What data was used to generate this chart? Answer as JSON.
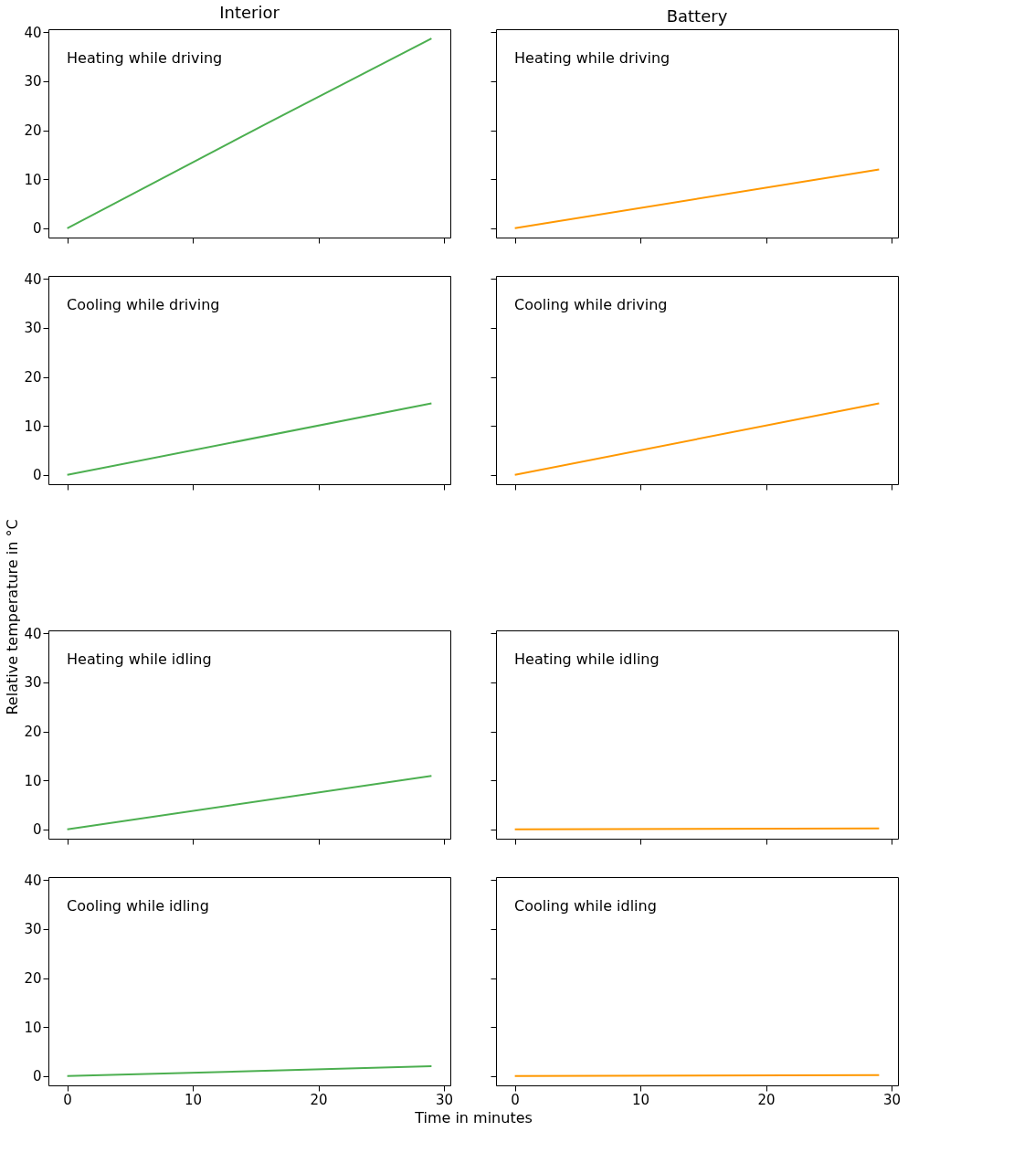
{
  "chart_data": [
    {
      "type": "line",
      "title": "Interior",
      "annotations": [
        "Heating while driving"
      ],
      "x": [
        0,
        16,
        29
      ],
      "series": [
        {
          "color": "#4caf50",
          "values": [
            0,
            21.5,
            38.7
          ]
        }
      ],
      "xlim": [
        -1.5,
        30.5
      ],
      "ylim": [
        -1.9,
        40.6
      ],
      "xticks": [
        0,
        10,
        20,
        30
      ],
      "yticks": [
        0,
        10,
        20,
        30,
        40
      ],
      "tick_labels": "y",
      "grid": false
    },
    {
      "type": "line",
      "title": "Battery",
      "annotations": [
        "Heating while driving"
      ],
      "x": [
        0,
        29
      ],
      "series": [
        {
          "color": "#ff9800",
          "values": [
            0,
            12
          ]
        }
      ],
      "xlim": [
        -1.5,
        30.5
      ],
      "ylim": [
        -1.9,
        40.6
      ],
      "xticks": [
        0,
        10,
        20,
        30
      ],
      "yticks": [
        0,
        10,
        20,
        30,
        40
      ],
      "tick_labels": false,
      "grid": false
    },
    {
      "type": "line",
      "annotations": [
        "Cooling while driving"
      ],
      "x": [
        0,
        29
      ],
      "series": [
        {
          "color": "#4caf50",
          "values": [
            0,
            14.6
          ]
        }
      ],
      "xlim": [
        -1.5,
        30.5
      ],
      "ylim": [
        -1.9,
        40.6
      ],
      "xticks": [
        0,
        10,
        20,
        30
      ],
      "yticks": [
        0,
        10,
        20,
        30,
        40
      ],
      "tick_labels": "y",
      "grid": false
    },
    {
      "type": "line",
      "annotations": [
        "Cooling while driving"
      ],
      "x": [
        0,
        29
      ],
      "series": [
        {
          "color": "#ff9800",
          "values": [
            0,
            14.6
          ]
        }
      ],
      "xlim": [
        -1.5,
        30.5
      ],
      "ylim": [
        -1.9,
        40.6
      ],
      "xticks": [
        0,
        10,
        20,
        30
      ],
      "yticks": [
        0,
        10,
        20,
        30,
        40
      ],
      "tick_labels": false,
      "grid": false
    },
    {
      "type": "line",
      "ylabel": "Relative temperature in °C",
      "annotations": [
        "Heating while idling"
      ],
      "x": [
        0,
        29
      ],
      "series": [
        {
          "color": "#4caf50",
          "values": [
            0,
            10.9
          ]
        }
      ],
      "xlim": [
        -1.5,
        30.5
      ],
      "ylim": [
        -1.9,
        40.6
      ],
      "xticks": [
        0,
        10,
        20,
        30
      ],
      "yticks": [
        0,
        10,
        20,
        30,
        40
      ],
      "tick_labels": "y",
      "grid": false
    },
    {
      "type": "line",
      "annotations": [
        "Heating while idling"
      ],
      "x": [
        0,
        29
      ],
      "series": [
        {
          "color": "#ff9800",
          "values": [
            0,
            0.2
          ]
        }
      ],
      "xlim": [
        -1.5,
        30.5
      ],
      "ylim": [
        -1.9,
        40.6
      ],
      "xticks": [
        0,
        10,
        20,
        30
      ],
      "yticks": [
        0,
        10,
        20,
        30,
        40
      ],
      "tick_labels": false,
      "grid": false
    },
    {
      "type": "line",
      "xlabel": "Time in minutes",
      "annotations": [
        "Cooling while idling"
      ],
      "x": [
        0,
        29
      ],
      "series": [
        {
          "color": "#4caf50",
          "values": [
            0,
            2
          ]
        }
      ],
      "xlim": [
        -1.5,
        30.5
      ],
      "ylim": [
        -1.9,
        40.6
      ],
      "xticks": [
        0,
        10,
        20,
        30
      ],
      "yticks": [
        0,
        10,
        20,
        30,
        40
      ],
      "grid": false
    },
    {
      "type": "line",
      "annotations": [
        "Cooling while idling"
      ],
      "x": [
        0,
        29
      ],
      "series": [
        {
          "color": "#ff9800",
          "values": [
            0,
            0.2
          ]
        }
      ],
      "xlim": [
        -1.5,
        30.5
      ],
      "ylim": [
        -1.9,
        40.6
      ],
      "xticks": [
        0,
        10,
        20,
        30
      ],
      "yticks": [
        0,
        10,
        20,
        30,
        40
      ],
      "tick_labels": "x",
      "grid": false
    }
  ]
}
